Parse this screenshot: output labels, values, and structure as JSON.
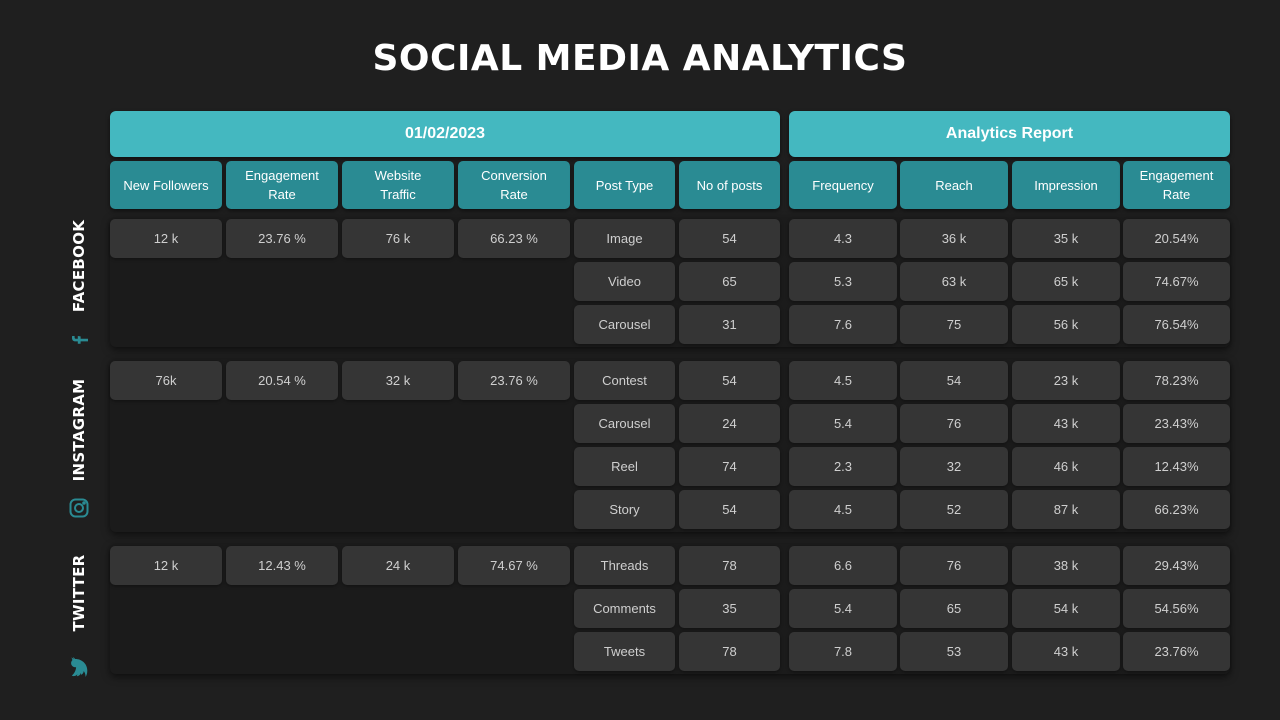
{
  "title": "SOCIAL MEDIA ANALYTICS",
  "bands": {
    "date": "01/02/2023",
    "report": "Analytics Report"
  },
  "headers": [
    "New Followers",
    "Engagement Rate",
    "Website Traffic",
    "Conversion Rate",
    "Post Type",
    "No of posts",
    "Frequency",
    "Reach",
    "Impression",
    "Engagement Rate"
  ],
  "platforms": [
    {
      "name": "FACEBOOK",
      "icon": "facebook-icon",
      "summary": [
        "12 k",
        "23.76 %",
        "76 k",
        "66.23 %"
      ],
      "rows": [
        [
          "Image",
          "54",
          "4.3",
          "36 k",
          "35 k",
          "20.54%"
        ],
        [
          "Video",
          "65",
          "5.3",
          "63 k",
          "65 k",
          "74.67%"
        ],
        [
          "Carousel",
          "31",
          "7.6",
          "75",
          "56 k",
          "76.54%"
        ]
      ]
    },
    {
      "name": "INSTAGRAM",
      "icon": "instagram-icon",
      "summary": [
        "76k",
        "20.54 %",
        "32 k",
        "23.76 %"
      ],
      "rows": [
        [
          "Contest",
          "54",
          "4.5",
          "54",
          "23 k",
          "78.23%"
        ],
        [
          "Carousel",
          "24",
          "5.4",
          "76",
          "43 k",
          "23.43%"
        ],
        [
          "Reel",
          "74",
          "2.3",
          "32",
          "46 k",
          "12.43%"
        ],
        [
          "Story",
          "54",
          "4.5",
          "52",
          "87 k",
          "66.23%"
        ]
      ]
    },
    {
      "name": "TWITTER",
      "icon": "twitter-icon",
      "summary": [
        "12 k",
        "12.43 %",
        "24 k",
        "74.67 %"
      ],
      "rows": [
        [
          "Threads",
          "78",
          "6.6",
          "76",
          "38 k",
          "29.43%"
        ],
        [
          "Comments",
          "35",
          "5.4",
          "65",
          "54 k",
          "54.56%"
        ],
        [
          "Tweets",
          "78",
          "7.8",
          "53",
          "43 k",
          "23.76%"
        ]
      ]
    }
  ],
  "colors": {
    "background": "#1f1f1f",
    "accent": "#44b8c0",
    "header": "#2a8b93",
    "cell": "#353535",
    "icon": "#2a8b93"
  }
}
